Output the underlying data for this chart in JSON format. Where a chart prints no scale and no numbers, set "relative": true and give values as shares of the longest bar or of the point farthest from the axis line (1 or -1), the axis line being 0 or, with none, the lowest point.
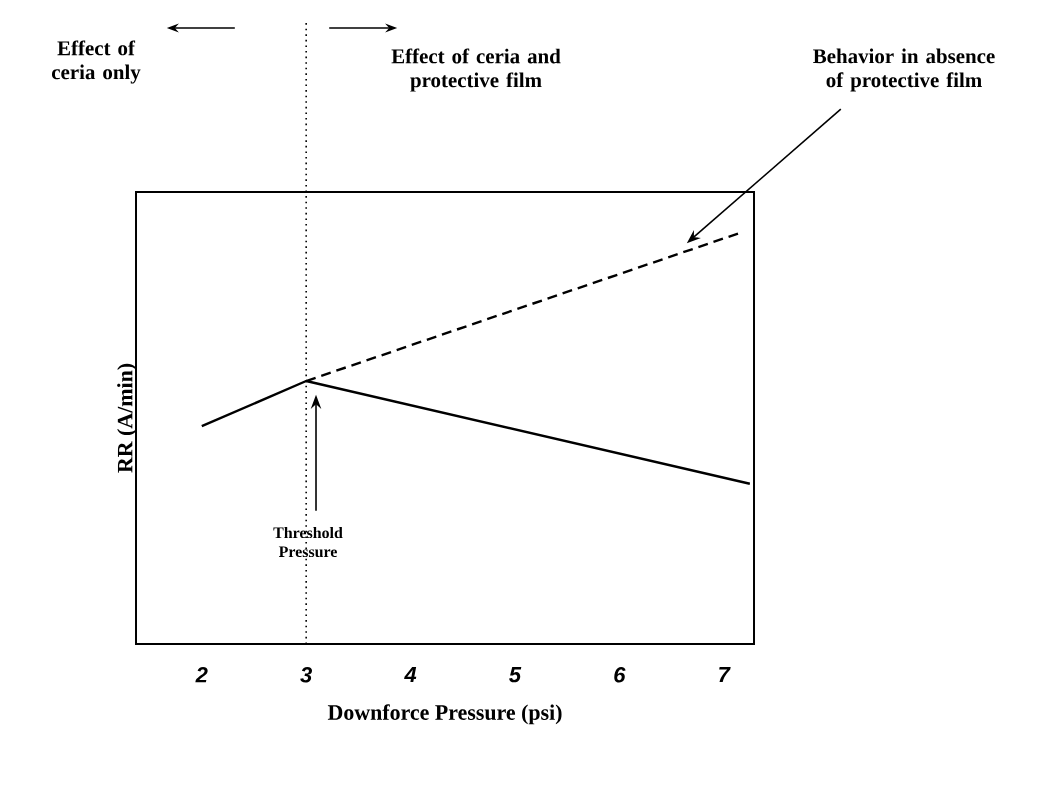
{
  "chart_data": {
    "type": "line",
    "relative": true,
    "xlabel": "Downforce Pressure (psi)",
    "ylabel": "RR (A/min)",
    "xlim": [
      1.37,
      7.29
    ],
    "xticks": [
      2,
      3,
      4,
      5,
      6,
      7
    ],
    "series": [
      {
        "color": "#000000",
        "line_style": "solid",
        "x": [
          2,
          3,
          7.25
        ],
        "values": [
          0.53,
          0.64,
          0.39
        ]
      },
      {
        "color": "#000000",
        "line_style": "dashed",
        "x": [
          3,
          7.15
        ],
        "values": [
          0.64,
          1
        ]
      }
    ],
    "ref_lines": [
      {
        "axis": "x",
        "value": 3,
        "line_style": "dotted",
        "color": "#000000"
      }
    ],
    "annotations": [
      "Effect of ceria only",
      "Effect of ceria and protective film",
      "Behavior in absence of protective film",
      "Threshold Pressure"
    ]
  }
}
